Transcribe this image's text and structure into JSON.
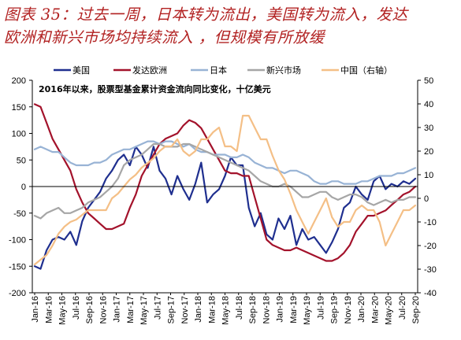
{
  "figure": {
    "title_lines": [
      "图表 35：过去一周，日本转为流出，美国转为流入，发达",
      "欧洲和新兴市场均持续流入 ，但规模有所放缓"
    ]
  },
  "chart_data": {
    "type": "line",
    "note": "2016年以来，股票型基金累计资金流向同比变化，十亿美元",
    "legend": [
      "美国",
      "发达欧洲",
      "日本",
      "新兴市场",
      "中国（右轴）"
    ],
    "legend_position": "top",
    "grid": false,
    "x_tick_labels": [
      "Jan-16",
      "Mar-16",
      "May-16",
      "Jul-16",
      "Sep-16",
      "Nov-16",
      "Jan-17",
      "Mar-17",
      "May-17",
      "Jul-17",
      "Sep-17",
      "Nov-17",
      "Jan-18",
      "Mar-18",
      "May-18",
      "Jul-18",
      "Sep-18",
      "Nov-18",
      "Jan-19",
      "Mar-19",
      "May-19",
      "Jul-19",
      "Sep-19",
      "Nov-19",
      "Jan-20",
      "Mar-20",
      "May-20",
      "Jul-20",
      "Sep-20"
    ],
    "y_left": {
      "ticks": [
        -200,
        -150,
        -100,
        -50,
        0,
        50,
        100,
        150,
        200
      ],
      "ylim": [
        -200,
        200
      ]
    },
    "y_right": {
      "ticks": [
        -40,
        -30,
        -20,
        -10,
        0,
        10,
        20,
        30,
        40,
        50
      ],
      "ylim": [
        -40,
        50
      ]
    },
    "colors": {
      "美国": "#1f2f8f",
      "发达欧洲": "#a3122b",
      "日本": "#98b3d5",
      "新兴市场": "#a6a6a6",
      "中国（右轴）": "#f4bf86"
    },
    "series": [
      {
        "name": "美国",
        "axis": "left",
        "values": [
          -150,
          -155,
          -120,
          -100,
          -95,
          -100,
          -85,
          -110,
          -65,
          -40,
          -25,
          -10,
          15,
          30,
          50,
          60,
          40,
          75,
          60,
          35,
          75,
          30,
          15,
          -15,
          20,
          -5,
          -25,
          5,
          45,
          -30,
          -15,
          -5,
          20,
          55,
          40,
          40,
          -40,
          -75,
          -50,
          -90,
          -100,
          -60,
          -80,
          -55,
          -110,
          -80,
          -100,
          -95,
          -110,
          -125,
          -105,
          -80,
          -40,
          -30,
          0,
          -15,
          -25,
          10,
          20,
          -5,
          5,
          0,
          10,
          5,
          15
        ]
      },
      {
        "name": "发达欧洲",
        "axis": "left",
        "values": [
          155,
          150,
          120,
          90,
          70,
          50,
          30,
          -5,
          -30,
          -50,
          -60,
          -70,
          -80,
          -80,
          -75,
          -70,
          -40,
          -15,
          20,
          40,
          60,
          80,
          90,
          95,
          100,
          115,
          125,
          120,
          110,
          90,
          70,
          50,
          30,
          25,
          25,
          20,
          20,
          -20,
          -60,
          -100,
          -110,
          -115,
          -120,
          -120,
          -115,
          -120,
          -125,
          -130,
          -135,
          -140,
          -140,
          -135,
          -125,
          -110,
          -85,
          -70,
          -55,
          -55,
          -50,
          -45,
          -35,
          -25,
          -15,
          -10,
          0
        ]
      },
      {
        "name": "日本",
        "axis": "left",
        "values": [
          70,
          75,
          70,
          65,
          65,
          55,
          45,
          40,
          40,
          40,
          45,
          45,
          50,
          60,
          65,
          70,
          70,
          75,
          80,
          85,
          85,
          80,
          85,
          85,
          80,
          75,
          80,
          70,
          65,
          65,
          60,
          60,
          60,
          55,
          55,
          60,
          55,
          45,
          40,
          35,
          35,
          30,
          25,
          30,
          30,
          25,
          20,
          10,
          5,
          5,
          10,
          10,
          5,
          5,
          5,
          10,
          10,
          15,
          20,
          20,
          20,
          25,
          25,
          30,
          35
        ]
      },
      {
        "name": "新兴市场",
        "axis": "left",
        "values": [
          -55,
          -60,
          -50,
          -45,
          -40,
          -50,
          -50,
          -45,
          -40,
          -30,
          -25,
          -20,
          -10,
          0,
          15,
          40,
          50,
          55,
          60,
          70,
          80,
          80,
          75,
          75,
          75,
          80,
          80,
          75,
          70,
          65,
          60,
          55,
          50,
          45,
          40,
          35,
          30,
          20,
          10,
          5,
          0,
          0,
          5,
          0,
          -10,
          -20,
          -20,
          -15,
          -10,
          -10,
          -20,
          -25,
          -20,
          -15,
          -15,
          -20,
          -30,
          -35,
          -30,
          -25,
          -30,
          -25,
          -25,
          -20,
          -20
        ]
      },
      {
        "name": "中国（右轴）",
        "axis": "right",
        "values": [
          -28,
          -26,
          -24,
          -20,
          -15,
          -12,
          -10,
          -9,
          -7,
          -5,
          -5,
          -5,
          -5,
          0,
          2,
          5,
          8,
          10,
          13,
          15,
          17,
          20,
          22,
          22,
          25,
          20,
          18,
          20,
          25,
          25,
          28,
          30,
          22,
          22,
          20,
          35,
          35,
          30,
          25,
          25,
          18,
          12,
          8,
          2,
          -5,
          -10,
          -15,
          -10,
          -5,
          0,
          -8,
          -12,
          -10,
          -10,
          -5,
          -3,
          -5,
          -5,
          -10,
          -20,
          -15,
          -10,
          -5,
          -5,
          -3
        ]
      }
    ]
  }
}
